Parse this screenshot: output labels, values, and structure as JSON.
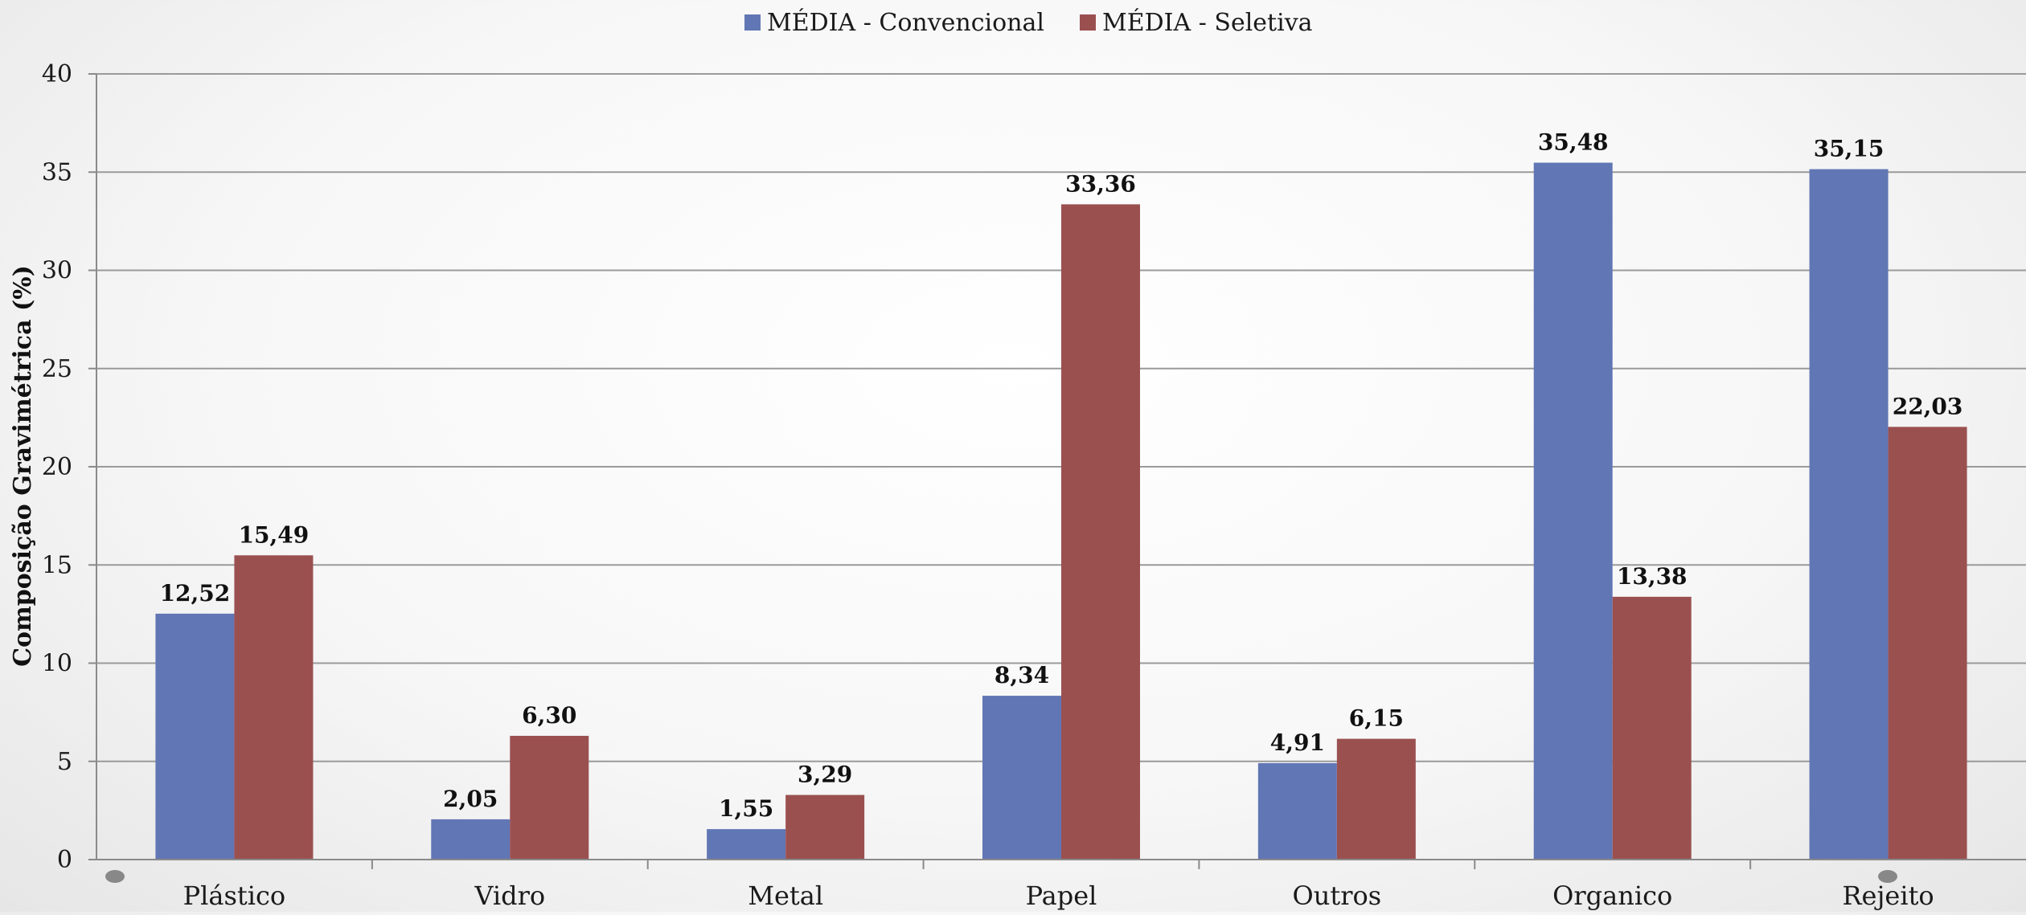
{
  "chart_data": {
    "type": "bar",
    "title": "",
    "xlabel": "",
    "ylabel": "Composição Gravimétrica (%)",
    "ylim": [
      0,
      40
    ],
    "yticks": [
      "0",
      "5",
      "10",
      "15",
      "20",
      "25",
      "30",
      "35",
      "40"
    ],
    "ytick_values": [
      0,
      5,
      10,
      15,
      20,
      25,
      30,
      35,
      40
    ],
    "grid": true,
    "legend_position": "top-center",
    "categories": [
      "Plástico",
      "Vidro",
      "Metal",
      "Papel",
      "Outros",
      "Organico",
      "Rejeito"
    ],
    "series": [
      {
        "name": "MÉDIA - Convencional",
        "color": "#6176b4",
        "values": [
          12.52,
          2.05,
          1.55,
          8.34,
          4.91,
          35.48,
          35.15
        ],
        "labels": [
          "12,52",
          "2,05",
          "1,55",
          "8,34",
          "4,91",
          "35,48",
          "35,15"
        ]
      },
      {
        "name": "MÉDIA - Seletiva",
        "color": "#9b5050",
        "values": [
          15.49,
          6.3,
          3.29,
          33.36,
          6.15,
          13.38,
          22.03
        ],
        "labels": [
          "15,49",
          "6,30",
          "3,29",
          "33,36",
          "6,15",
          "13,38",
          "22,03"
        ]
      }
    ]
  }
}
